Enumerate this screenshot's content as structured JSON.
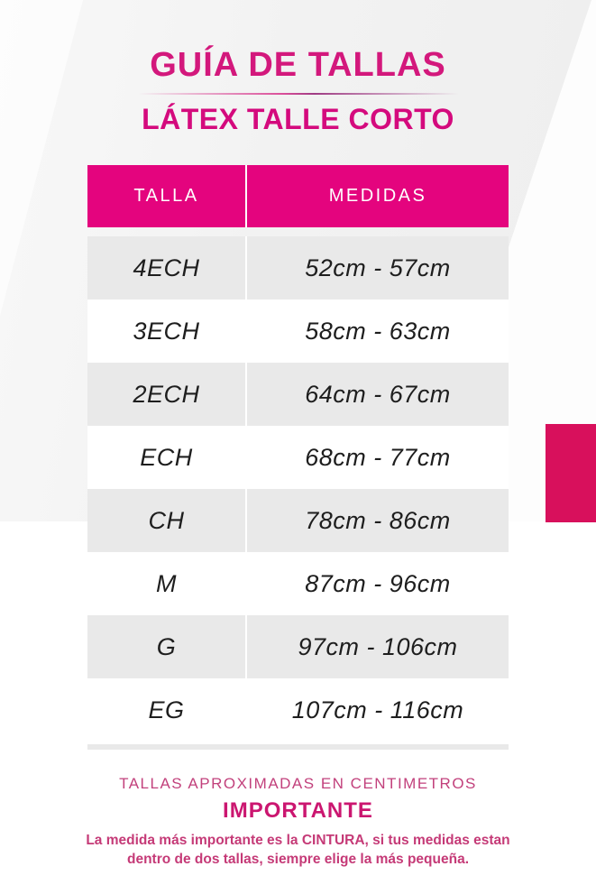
{
  "header": {
    "title": "GUÍA DE TALLAS",
    "subtitle": "LÁTEX TALLE CORTO"
  },
  "table": {
    "columns": [
      "TALLA",
      "MEDIDAS"
    ],
    "rows": [
      {
        "talla": "4ECH",
        "medidas": "52cm - 57cm"
      },
      {
        "talla": "3ECH",
        "medidas": "58cm - 63cm"
      },
      {
        "talla": "2ECH",
        "medidas": "64cm - 67cm"
      },
      {
        "talla": "ECH",
        "medidas": "68cm - 77cm"
      },
      {
        "talla": "CH",
        "medidas": "78cm - 86cm"
      },
      {
        "talla": "M",
        "medidas": "87cm - 96cm"
      },
      {
        "talla": "G",
        "medidas": "97cm - 106cm"
      },
      {
        "talla": "EG",
        "medidas": "107cm - 116cm"
      }
    ]
  },
  "footer": {
    "note": "TALLAS APROXIMADAS EN CENTIMETROS",
    "important_label": "IMPORTANTE",
    "important_text": "La medida más importante es la CINTURA, si tus medidas estan dentro de dos tallas, siempre elige la más pequeña."
  },
  "colors": {
    "title_pink": "#d3187c",
    "table_header_pink": "#e4047e",
    "accent_pink": "#d8105c",
    "row_gray": "#e9e9e9",
    "footer_pink": "#c53a77"
  }
}
